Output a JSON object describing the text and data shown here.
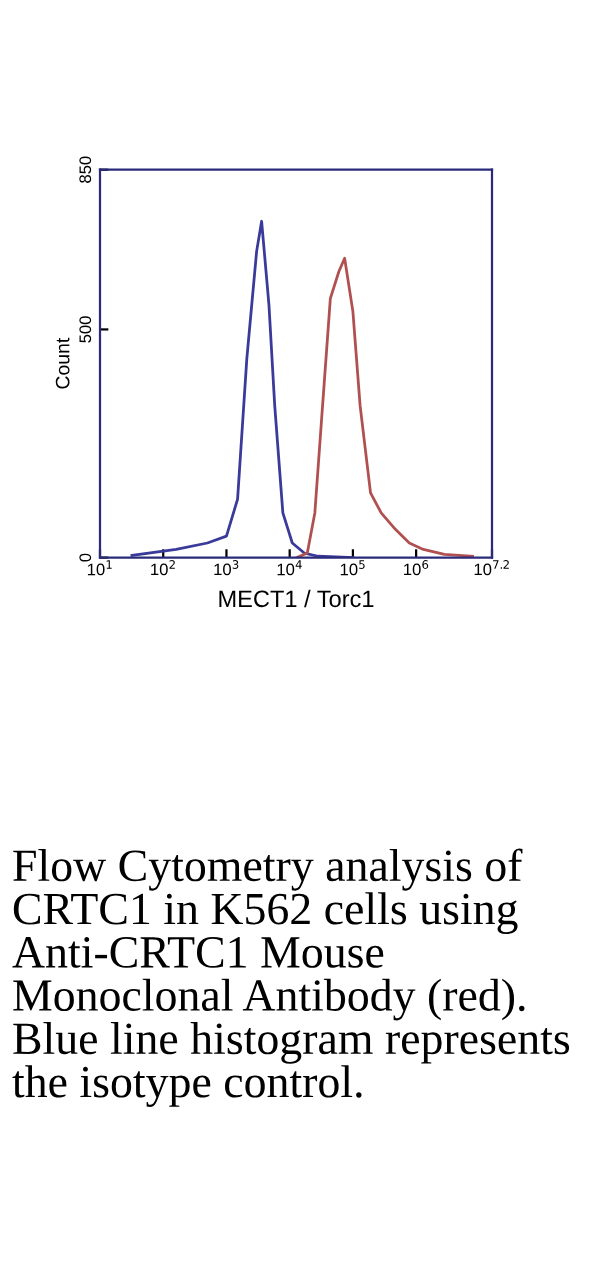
{
  "chart_data": {
    "type": "line",
    "xlabel": "MECT1 / Torc1",
    "ylabel": "Count",
    "log": "x",
    "xlim": [
      10,
      15848932
    ],
    "xticks": [
      {
        "value": 10,
        "label": "10$^{1}$"
      },
      {
        "value": 100,
        "label": "10$^{2}$"
      },
      {
        "value": 1000,
        "label": "10$^{3}$"
      },
      {
        "value": 10000,
        "label": "10$^{4}$"
      },
      {
        "value": 100000,
        "label": "10$^{5}$"
      },
      {
        "value": 1000000,
        "label": "10$^{6}$"
      },
      {
        "value": 15848932,
        "label": "10$^{7.2}$"
      }
    ],
    "ylim": [
      0,
      850
    ],
    "yticks": [
      0,
      500,
      850
    ],
    "grid": false,
    "series": [
      {
        "color": "#3a3a9a",
        "x": [
          32,
          160,
          500,
          1000,
          1500,
          2100,
          3000,
          3600,
          4700,
          5800,
          7800,
          11000,
          17000,
          28000,
          100000
        ],
        "values": [
          5,
          18,
          32,
          47,
          128,
          436,
          671,
          737,
          554,
          333,
          98,
          32,
          10,
          3,
          0
        ]
      },
      {
        "color": "#b05050",
        "x": [
          13000,
          19000,
          25000,
          32000,
          44000,
          60000,
          74000,
          100000,
          130000,
          190000,
          280000,
          470000,
          780000,
          1300000,
          2800000,
          7800000
        ],
        "values": [
          0,
          10,
          98,
          304,
          568,
          627,
          656,
          539,
          333,
          142,
          98,
          62,
          32,
          18,
          7,
          3
        ]
      }
    ],
    "annotations": [
      "Flow Cytometry analysis of CRTC1 in K562 cells using Anti-CRTC1 Mouse Monoclonal Antibody (red). Blue line histogram represents the isotype control."
    ]
  }
}
